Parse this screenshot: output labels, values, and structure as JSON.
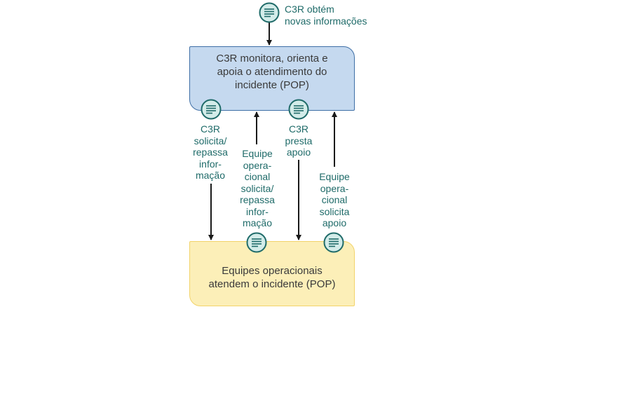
{
  "boxes": {
    "c3r": "C3R monitora, orienta e\napoia o atendimento do\nincidente (POP)",
    "equipes": "Equipes operacionais\natendem o incidente (POP)"
  },
  "labels": {
    "top": "C3R obtém\nnovas informações",
    "c3r_solicita": "C3R\nsolicita/\nrepassa\ninfor-\nmação",
    "equipe_solicita_info": "Equipe\nopera-\ncional\nsolicita/\nrepassa\ninfor-\nmação",
    "c3r_presta": "C3R\npresta\napoio",
    "equipe_solicita_apoio": "Equipe\nopera-\ncional\nsolicita\napoio"
  },
  "colors": {
    "teal": "#1f6b69",
    "icon_fill": "#d3ece9",
    "blue_box": "#c5d9ef",
    "blue_border": "#3f6fa6",
    "yellow_box": "#fcefb8",
    "yellow_border": "#f2d36a",
    "arrow": "#1a1a1a"
  }
}
